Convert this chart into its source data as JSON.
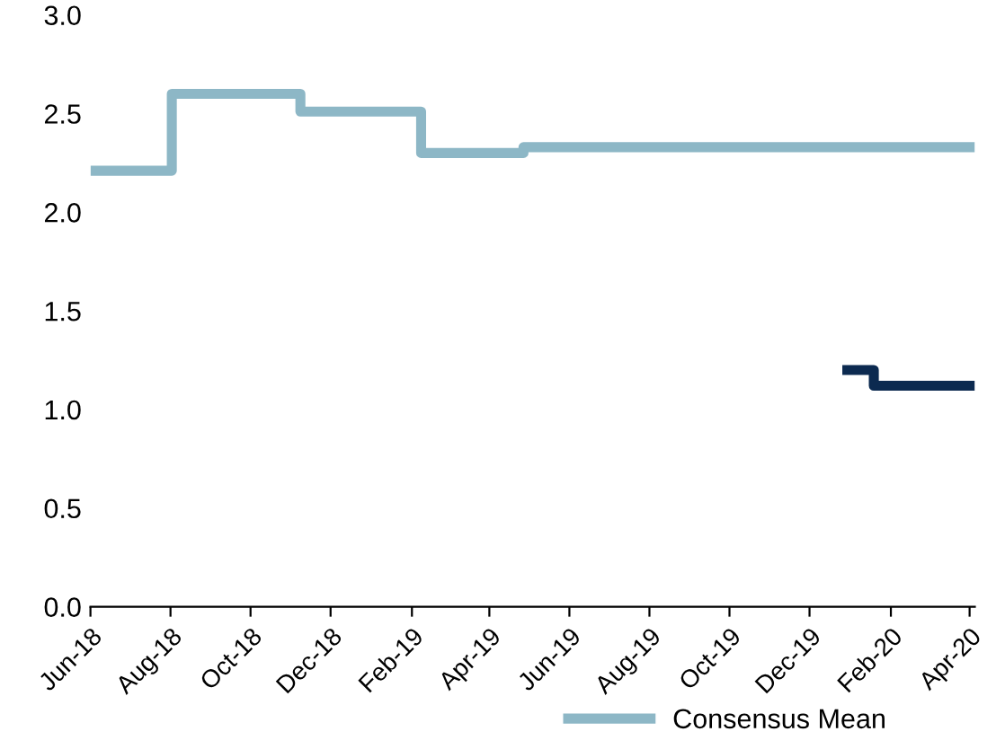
{
  "chart_data": {
    "type": "step",
    "series": [
      {
        "color": "#0c2a50",
        "x": [
          "2019-12-26",
          "2020-01-19",
          "2020-04-05"
        ],
        "values": [
          1.2,
          1.12,
          1.12
        ]
      },
      {
        "name": "Consensus Mean",
        "color": "#8db7c6",
        "x": [
          "2018-06-01",
          "2018-08-02",
          "2018-11-08",
          "2019-02-08",
          "2019-04-27",
          "2020-04-05"
        ],
        "values": [
          2.21,
          2.6,
          2.51,
          2.3,
          2.33,
          2.33
        ]
      }
    ],
    "xlim": [
      "2018-06-01",
      "2020-04-05"
    ],
    "xticks": [
      {
        "value": "2018-06-01",
        "label": "Jun-18"
      },
      {
        "value": "2018-08-01",
        "label": "Aug-18"
      },
      {
        "value": "2018-10-01",
        "label": "Oct-18"
      },
      {
        "value": "2018-12-01",
        "label": "Dec-18"
      },
      {
        "value": "2019-02-01",
        "label": "Feb-19"
      },
      {
        "value": "2019-04-01",
        "label": "Apr-19"
      },
      {
        "value": "2019-06-01",
        "label": "Jun-19"
      },
      {
        "value": "2019-08-01",
        "label": "Aug-19"
      },
      {
        "value": "2019-10-01",
        "label": "Oct-19"
      },
      {
        "value": "2019-12-01",
        "label": "Dec-19"
      },
      {
        "value": "2020-02-01",
        "label": "Feb-20"
      },
      {
        "value": "2020-04-01",
        "label": "Apr-20"
      }
    ],
    "ylim": [
      0,
      3
    ],
    "yticks": [
      {
        "value": 0,
        "label": "0.0"
      },
      {
        "value": 0.5,
        "label": "0.5"
      },
      {
        "value": 1,
        "label": "1.0"
      },
      {
        "value": 1.5,
        "label": "1.5"
      },
      {
        "value": 2,
        "label": "2.0"
      },
      {
        "value": 2.5,
        "label": "2.5"
      },
      {
        "value": 3,
        "label": "3.0"
      }
    ],
    "grid": false,
    "legend": "bottom",
    "line_style": "solid"
  }
}
